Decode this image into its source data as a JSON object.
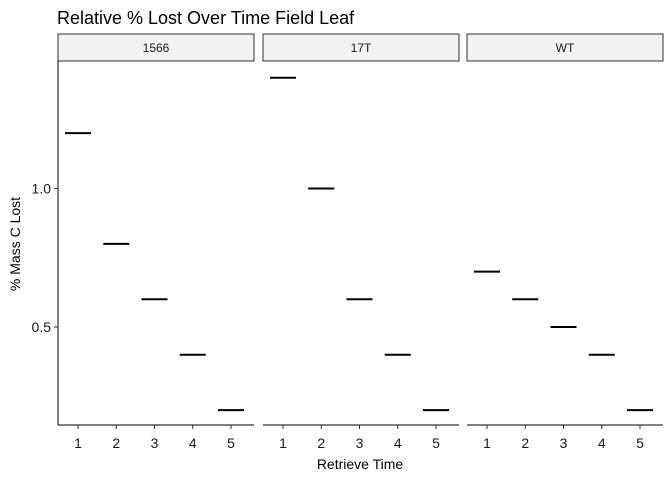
{
  "chart_data": {
    "type": "faceted-errorbar",
    "title": "Relative % Lost Over Time Field Leaf",
    "xlabel": "Retrieve Time",
    "ylabel": "% Mass C Lost",
    "x_categories": [
      "1",
      "2",
      "3",
      "4",
      "5"
    ],
    "y_ticks": [
      "0.5",
      "1.0"
    ],
    "ylim": [
      0.15,
      1.46
    ],
    "grid": false,
    "facets": [
      {
        "name": "1566",
        "values": [
          1.2,
          0.8,
          0.6,
          0.4,
          0.2
        ]
      },
      {
        "name": "17T",
        "values": [
          1.4,
          1.0,
          0.6,
          0.4,
          0.2
        ]
      },
      {
        "name": "WT",
        "values": [
          0.7,
          0.6,
          0.5,
          0.4,
          0.2
        ]
      }
    ],
    "colors": {
      "mark": "#000000",
      "strip_fill": "#f2f2f2",
      "strip_border": "#333333"
    }
  }
}
